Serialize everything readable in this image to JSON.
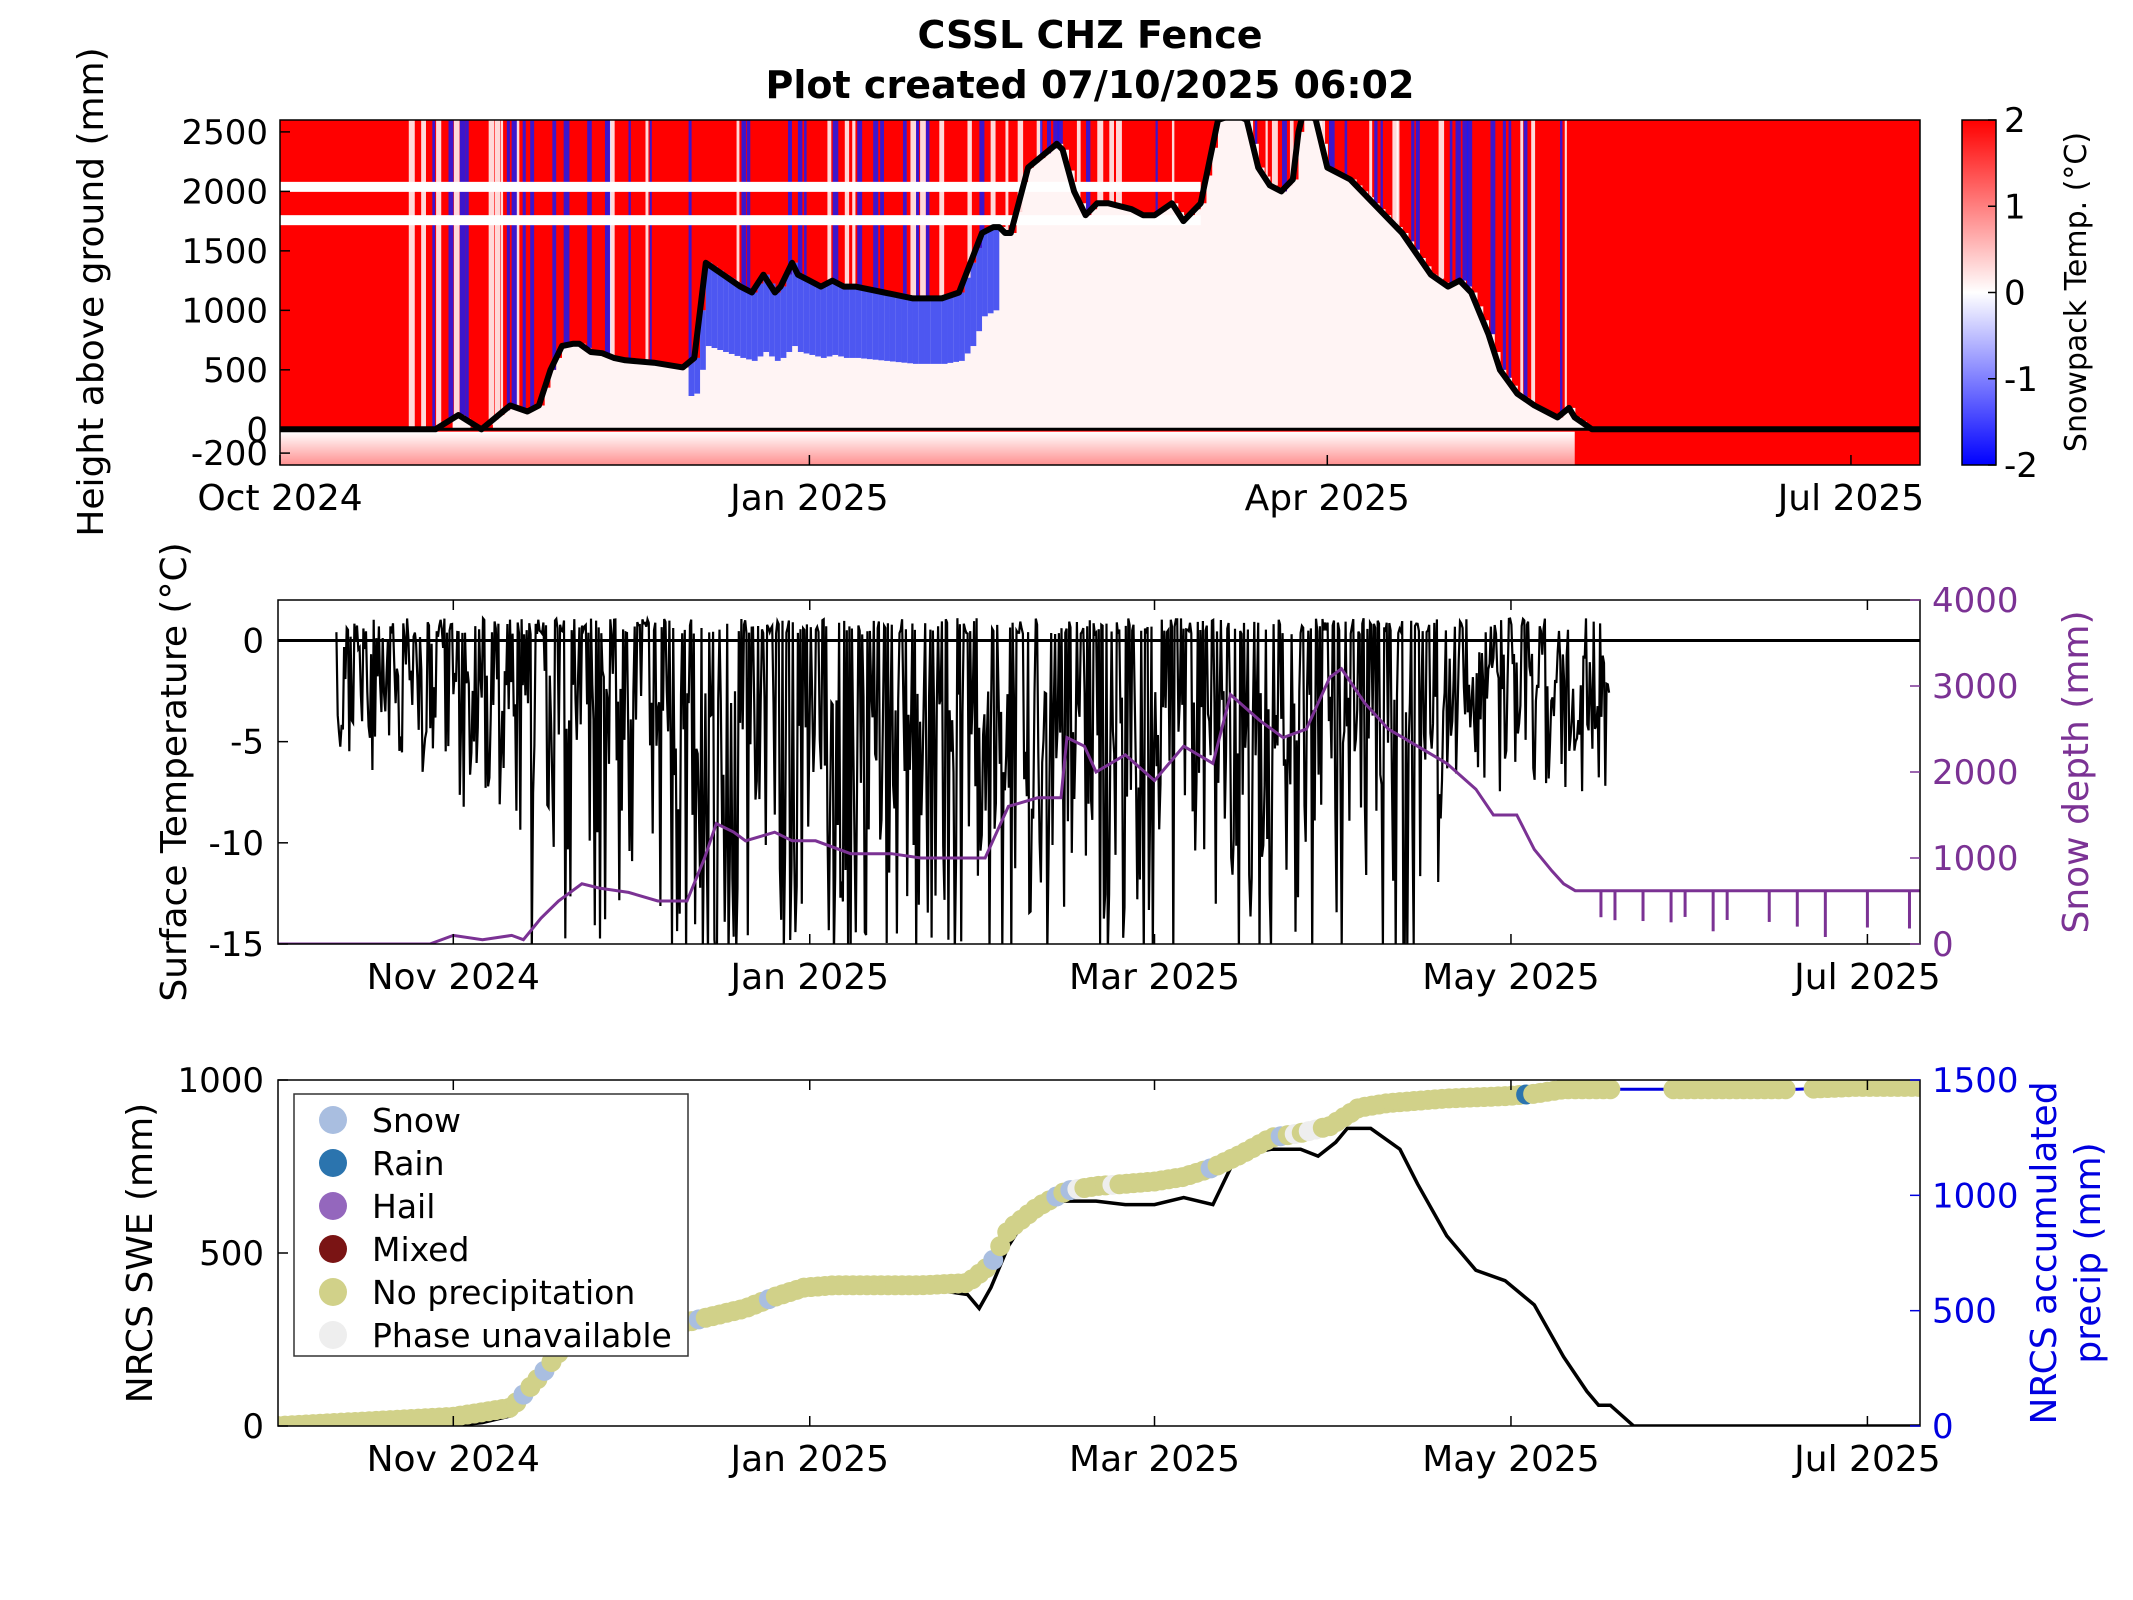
{
  "title": "CSSL CHZ Fence",
  "subtitle": "Plot created 07/10/2025 06:02",
  "colors": {
    "purple": "#7B3294",
    "blue": "#0000E0",
    "black": "#000000",
    "red": "#FF0000",
    "snow": "#A9BEE0",
    "rain": "#2B74AE",
    "hail": "#9467BD",
    "mixed": "#7A1414",
    "noprecip": "#D1D189",
    "unavailable": "#EEEEEE"
  },
  "chart_data": [
    {
      "type": "heatmap",
      "ylabel": "Height above ground (mm)",
      "colorbar_label": "Snowpack Temp. (°C)",
      "colorbar_ticks": [
        "2",
        "1",
        "0",
        "-1",
        "-2"
      ],
      "clim": [
        -2,
        2
      ],
      "xlim": [
        0,
        285
      ],
      "ylim": [
        -300,
        2600
      ],
      "yticks": [
        "2500",
        "2000",
        "1500",
        "1000",
        "500",
        "0",
        "-200"
      ],
      "xticks": [
        {
          "label": "Oct 2024",
          "day": 0
        },
        {
          "label": "Jan 2025",
          "day": 92
        },
        {
          "label": "Apr 2025",
          "day": 182
        },
        {
          "label": "Jul 2025",
          "day": 273
        }
      ],
      "snow_depth_line": {
        "x": [
          0,
          27,
          31,
          35,
          40,
          43,
          45,
          47,
          49,
          51,
          52,
          54,
          56,
          58,
          60,
          65,
          70,
          72,
          73,
          74,
          77,
          80,
          82,
          84,
          86,
          87,
          89,
          90,
          92,
          94,
          96,
          98,
          100,
          105,
          110,
          115,
          118,
          122,
          124,
          125,
          126,
          127,
          130,
          135,
          136,
          138,
          140,
          142,
          144,
          148,
          150,
          152,
          155,
          157,
          160,
          163,
          166,
          168,
          170,
          172,
          174,
          175,
          176,
          177,
          178,
          180,
          182,
          186,
          190,
          195,
          200,
          203,
          205,
          207,
          210,
          212,
          215,
          218,
          222,
          224,
          225,
          228,
          285
        ],
        "values": [
          0,
          0,
          120,
          0,
          200,
          150,
          200,
          500,
          700,
          720,
          720,
          650,
          640,
          600,
          580,
          560,
          520,
          600,
          1000,
          1400,
          1300,
          1200,
          1150,
          1300,
          1150,
          1200,
          1400,
          1300,
          1250,
          1200,
          1250,
          1200,
          1200,
          1150,
          1100,
          1100,
          1150,
          1650,
          1700,
          1700,
          1650,
          1650,
          2200,
          2400,
          2350,
          2000,
          1800,
          1900,
          1900,
          1850,
          1800,
          1800,
          1900,
          1750,
          1900,
          2600,
          2650,
          2600,
          2200,
          2050,
          2000,
          2050,
          2100,
          2500,
          2700,
          2600,
          2200,
          2100,
          1900,
          1650,
          1300,
          1200,
          1250,
          1150,
          800,
          500,
          300,
          200,
          100,
          180,
          100,
          0,
          0
        ]
      }
    },
    {
      "type": "line",
      "ylabel": "Surface Temperature (°C)",
      "y2label": "Snow depth (mm)",
      "ylim": [
        -15,
        2
      ],
      "y2lim": [
        0,
        4000
      ],
      "xlim": [
        0,
        281
      ],
      "yticks": [
        "0",
        "-5",
        "-10",
        "-15"
      ],
      "y2ticks": [
        "4000",
        "3000",
        "2000",
        "1000",
        "0"
      ],
      "xticks": [
        {
          "label": "Nov 2024",
          "day": 30
        },
        {
          "label": "Jan 2025",
          "day": 91
        },
        {
          "label": "Mar 2025",
          "day": 150
        },
        {
          "label": "May 2025",
          "day": 211
        },
        {
          "label": "Jul 2025",
          "day": 272
        }
      ],
      "snow_depth_series": {
        "x": [
          0,
          26,
          30,
          35,
          40,
          42,
          45,
          48,
          52,
          55,
          60,
          65,
          70,
          73,
          75,
          78,
          80,
          85,
          88,
          92,
          98,
          105,
          110,
          115,
          121,
          125,
          130,
          134,
          135,
          138,
          140,
          145,
          150,
          155,
          160,
          163,
          168,
          172,
          176,
          180,
          182,
          186,
          190,
          195,
          200,
          205,
          208,
          212,
          215,
          218,
          220,
          222,
          225,
          281
        ],
        "values": [
          0,
          0,
          100,
          50,
          100,
          50,
          300,
          500,
          700,
          650,
          600,
          500,
          500,
          1000,
          1400,
          1300,
          1200,
          1300,
          1200,
          1200,
          1050,
          1050,
          1000,
          1000,
          1000,
          1600,
          1700,
          1700,
          2400,
          2300,
          2000,
          2200,
          1900,
          2300,
          2100,
          2900,
          2600,
          2400,
          2500,
          3100,
          3200,
          2800,
          2500,
          2300,
          2100,
          1800,
          1500,
          1500,
          1100,
          850,
          700,
          620,
          620,
          620
        ]
      }
    },
    {
      "type": "line",
      "ylabel": "NRCS SWE (mm)",
      "y2label": "NRCS accumulated precip (mm)",
      "ylim": [
        0,
        1000
      ],
      "y2lim": [
        0,
        1500
      ],
      "xlim": [
        0,
        281
      ],
      "yticks": [
        "1000",
        "500",
        "0"
      ],
      "y2ticks": [
        "1500",
        "1000",
        "500",
        "0"
      ],
      "xticks": [
        {
          "label": "Nov 2024",
          "day": 30
        },
        {
          "label": "Jan 2025",
          "day": 91
        },
        {
          "label": "Mar 2025",
          "day": 150
        },
        {
          "label": "May 2025",
          "day": 211
        },
        {
          "label": "Jul 2025",
          "day": 272
        }
      ],
      "legend": [
        {
          "label": "Snow",
          "color": "#A9BEE0"
        },
        {
          "label": "Rain",
          "color": "#2B74AE"
        },
        {
          "label": "Hail",
          "color": "#9467BD"
        },
        {
          "label": "Mixed",
          "color": "#7A1414"
        },
        {
          "label": "No precipitation",
          "color": "#D1D189"
        },
        {
          "label": "Phase unavailable",
          "color": "#EEEEEE"
        }
      ],
      "legend_position": "top-left",
      "swe_series": {
        "x": [
          0,
          30,
          35,
          40,
          45,
          48,
          50,
          55,
          60,
          65,
          70,
          75,
          80,
          85,
          88,
          90,
          95,
          100,
          110,
          118,
          120,
          122,
          125,
          128,
          132,
          140,
          145,
          150,
          155,
          160,
          164,
          170,
          175,
          178,
          181,
          183,
          187,
          192,
          195,
          200,
          205,
          210,
          215,
          220,
          224,
          226,
          228,
          232,
          281
        ],
        "values": [
          0,
          0,
          10,
          30,
          160,
          250,
          270,
          280,
          290,
          300,
          300,
          310,
          330,
          380,
          400,
          400,
          400,
          400,
          400,
          380,
          340,
          400,
          520,
          600,
          650,
          650,
          640,
          640,
          660,
          640,
          780,
          800,
          800,
          780,
          820,
          860,
          860,
          800,
          700,
          550,
          450,
          420,
          350,
          200,
          100,
          60,
          60,
          0,
          0
        ]
      },
      "precip_series": {
        "x": [
          0,
          30,
          40,
          45,
          50,
          55,
          60,
          65,
          70,
          75,
          80,
          85,
          90,
          95,
          100,
          110,
          118,
          122,
          125,
          130,
          135,
          140,
          145,
          150,
          155,
          160,
          165,
          170,
          175,
          180,
          185,
          190,
          195,
          200,
          210,
          215,
          220,
          250,
          260,
          270,
          281
        ],
        "values": [
          0,
          40,
          80,
          220,
          380,
          390,
          400,
          430,
          450,
          480,
          510,
          560,
          600,
          610,
          610,
          610,
          620,
          700,
          850,
          950,
          1020,
          1040,
          1050,
          1060,
          1080,
          1120,
          1180,
          1250,
          1270,
          1300,
          1380,
          1400,
          1410,
          1420,
          1430,
          1440,
          1460,
          1460,
          1460,
          1470,
          1470
        ]
      },
      "phase_markers": [
        {
          "phase": "Snow",
          "x": [
            42,
            45,
            46,
            72,
            84,
            122,
            133,
            136,
            160,
            172,
            214
          ]
        },
        {
          "phase": "Rain",
          "x": [
            213,
            214
          ]
        },
        {
          "phase": "Hail",
          "x": [
            55
          ]
        },
        {
          "phase": "Unavailable",
          "x": [
            137,
            143,
            171,
            174,
            176,
            178
          ]
        }
      ]
    }
  ]
}
